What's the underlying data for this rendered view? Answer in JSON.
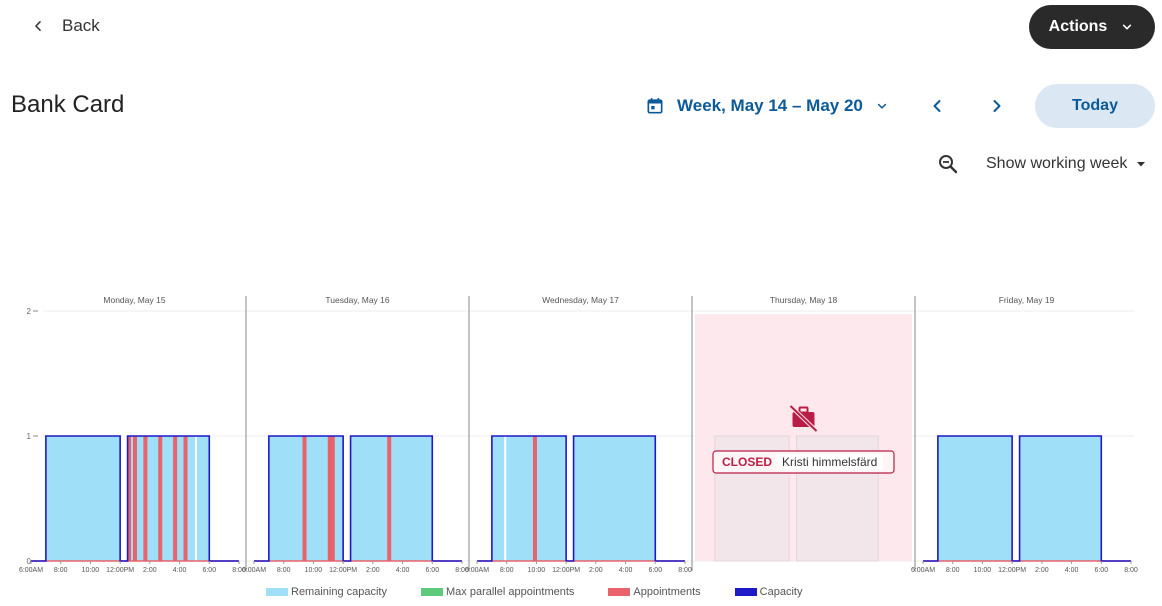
{
  "header": {
    "back_label": "Back",
    "actions_label": "Actions"
  },
  "page": {
    "title": "Bank Card"
  },
  "toolbar": {
    "week_label": "Week, May 14 – May 20",
    "today_label": "Today",
    "working_week_label": "Show working week"
  },
  "icons": {
    "back": "chevron-left-icon",
    "actions": "chevron-down-icon",
    "calendar": "calendar-icon",
    "prev": "chevron-left-icon",
    "next": "chevron-right-icon",
    "zoom": "zoom-out-icon",
    "dropdown": "caret-down-icon",
    "closed": "work-off-icon"
  },
  "colors": {
    "brand_blue": "#0b5a99",
    "remaining": "#9fdff7",
    "parallel": "#5cc97b",
    "appointments": "#e8636b",
    "capacity": "#1f19c8",
    "closed_bg": "#fde4ea",
    "closed_accent": "#b81e45"
  },
  "legend": [
    {
      "label": "Remaining capacity",
      "color": "#9fdff7"
    },
    {
      "label": "Max parallel appointments",
      "color": "#5cc97b"
    },
    {
      "label": "Appointments",
      "color": "#e8636b"
    },
    {
      "label": "Capacity",
      "color": "#1f19c8"
    }
  ],
  "chart_data": {
    "type": "area",
    "ylim": [
      0,
      2
    ],
    "yticks": [
      0,
      1,
      2
    ],
    "x_range_hours": [
      6,
      20
    ],
    "x_tick_labels": [
      "6:00AM",
      "8:00",
      "10:00",
      "12:00PM",
      "2:00",
      "4:00",
      "6:00",
      "8:00"
    ],
    "days": [
      {
        "label": "Monday, May 15",
        "capacity_blocks": [
          [
            7,
            12
          ],
          [
            12.5,
            18
          ]
        ],
        "capacity_value": 1,
        "appointments": [
          12.6,
          13,
          13.7,
          14.7,
          15.7,
          16.4
        ],
        "gaps": [
          17.1
        ],
        "closed": false
      },
      {
        "label": "Tuesday, May 16",
        "capacity_blocks": [
          [
            7,
            12
          ],
          [
            12.5,
            18
          ]
        ],
        "capacity_value": 1,
        "appointments": [
          9.4,
          11.1,
          11.3,
          15.1
        ],
        "gaps": [],
        "closed": false
      },
      {
        "label": "Wednesday, May 17",
        "capacity_blocks": [
          [
            7,
            12
          ],
          [
            12.5,
            18
          ]
        ],
        "capacity_value": 1,
        "appointments": [
          9.9
        ],
        "gaps": [
          7.9
        ],
        "closed": false
      },
      {
        "label": "Thursday, May 18",
        "capacity_blocks": [],
        "capacity_value": 0,
        "appointments": [],
        "gaps": [],
        "closed": true,
        "closed_label": "CLOSED",
        "closed_reason": "Kristi himmelsfärd"
      },
      {
        "label": "Friday, May 19",
        "capacity_blocks": [
          [
            7,
            12
          ],
          [
            12.5,
            18
          ]
        ],
        "capacity_value": 1,
        "appointments": [],
        "gaps": [],
        "closed": false
      }
    ]
  }
}
